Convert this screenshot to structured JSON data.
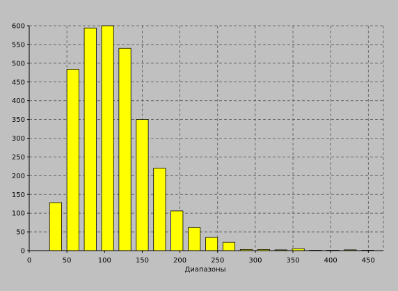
{
  "chart_data": {
    "type": "bar",
    "xlabel": "Диапазоны",
    "ylabel": "",
    "title": "",
    "xlim": [
      0,
      470
    ],
    "ylim": [
      0,
      600
    ],
    "x_ticks": [
      0,
      50,
      100,
      150,
      200,
      250,
      300,
      350,
      400,
      450
    ],
    "y_ticks": [
      0,
      50,
      100,
      150,
      200,
      250,
      300,
      350,
      400,
      450,
      500,
      550,
      600
    ],
    "grid": true,
    "bar_width": 16,
    "x": [
      35,
      58,
      81,
      104,
      127,
      150,
      173,
      196,
      219,
      242,
      265,
      288,
      311,
      334,
      357,
      380,
      403,
      426,
      449
    ],
    "values": [
      128,
      484,
      594,
      600,
      540,
      350,
      220,
      106,
      62,
      35,
      22,
      3,
      3,
      2,
      5,
      1,
      1,
      2,
      1
    ],
    "bar_color": "#ffff00",
    "background": "#c0c0c0"
  }
}
